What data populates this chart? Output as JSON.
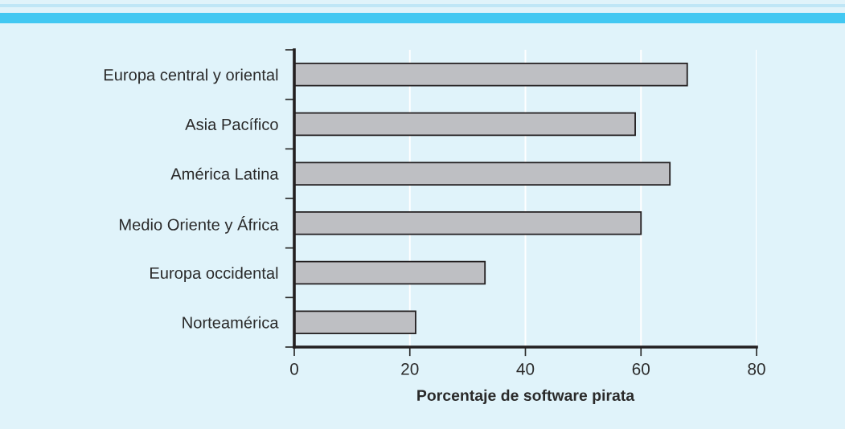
{
  "chart_data": {
    "type": "bar",
    "orientation": "horizontal",
    "categories": [
      "Europa central y oriental",
      "Asia Pacífico",
      "América Latina",
      "Medio Oriente y África",
      "Europa occidental",
      "Norteamérica"
    ],
    "values": [
      68,
      59,
      65,
      60,
      33,
      21
    ],
    "color": "#bebfc3",
    "xlabel": "Porcentaje de software pirata",
    "xlim": [
      0,
      80
    ],
    "xticks": [
      0,
      20,
      40,
      60,
      80
    ],
    "grid": "x"
  }
}
